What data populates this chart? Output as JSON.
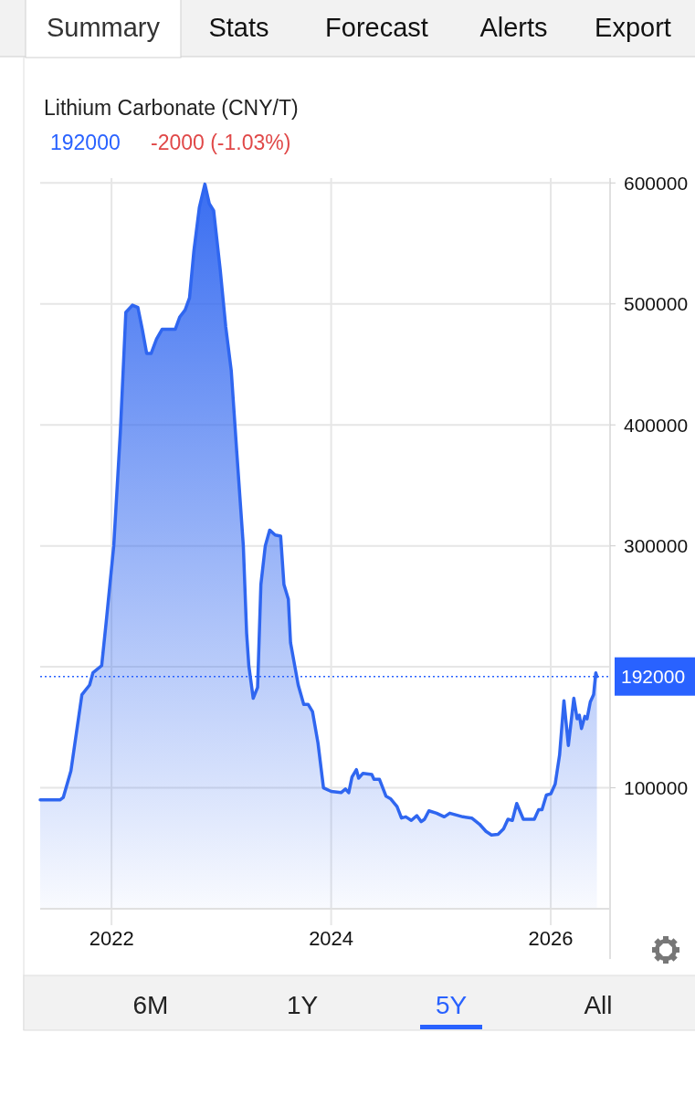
{
  "chart_data": {
    "type": "area",
    "title": "Lithium Carbonate (CNY/T)",
    "subtitle": "192000",
    "annotations": [
      "-2000 (-1.03%)",
      "Summary",
      "Stats",
      "Forecast",
      "Alerts",
      "Export",
      "6M",
      "1Y",
      "5Y",
      "All"
    ],
    "x": [
      2021.35,
      2021.53,
      2021.56,
      2021.63,
      2021.73,
      2021.8,
      2021.83,
      2021.91,
      2021.95,
      2022.02,
      2022.08,
      2022.13,
      2022.19,
      2022.24,
      2022.28,
      2022.32,
      2022.36,
      2022.41,
      2022.46,
      2022.58,
      2022.62,
      2022.67,
      2022.71,
      2022.75,
      2022.8,
      2022.85,
      2022.89,
      2022.93,
      2022.99,
      2023.04,
      2023.09,
      2023.14,
      2023.2,
      2023.23,
      2023.25,
      2023.29,
      2023.33,
      2023.36,
      2023.4,
      2023.44,
      2023.49,
      2023.54,
      2023.57,
      2023.61,
      2023.63,
      2023.66,
      2023.7,
      2023.75,
      2023.79,
      2023.83,
      2023.88,
      2023.93,
      2024.0,
      2024.09,
      2024.13,
      2024.16,
      2024.19,
      2024.23,
      2024.25,
      2024.29,
      2024.37,
      2024.39,
      2024.44,
      2024.5,
      2024.54,
      2024.6,
      2024.64,
      2024.68,
      2024.73,
      2024.78,
      2024.82,
      2024.85,
      2024.89,
      2024.96,
      2025.03,
      2025.08,
      2025.2,
      2025.28,
      2025.35,
      2025.41,
      2025.46,
      2025.52,
      2025.57,
      2025.61,
      2025.65,
      2025.69,
      2025.75,
      2025.85,
      2025.89,
      2025.92,
      2025.96,
      2026.0,
      2026.04,
      2026.08,
      2026.12,
      2026.16,
      2026.21,
      2026.24,
      2026.26,
      2026.28,
      2026.31,
      2026.33,
      2026.36,
      2026.39,
      2026.41,
      2026.42
    ],
    "series": [
      {
        "color": "#2f66f0",
        "values": [
          90000,
          90000,
          92000,
          114000,
          177000,
          185000,
          195000,
          201000,
          236000,
          300000,
          394000,
          493000,
          499000,
          497000,
          479000,
          459000,
          459000,
          471000,
          479000,
          479000,
          489000,
          495000,
          505000,
          544000,
          580000,
          599000,
          583000,
          577000,
          528000,
          481000,
          445000,
          378000,
          300000,
          228000,
          201000,
          174000,
          183000,
          268000,
          300000,
          313000,
          309000,
          308000,
          268000,
          256000,
          220000,
          205000,
          185000,
          169000,
          169000,
          163000,
          137000,
          100000,
          97000,
          96000,
          99000,
          96000,
          109000,
          115000,
          108000,
          112000,
          111000,
          107000,
          107000,
          93000,
          91000,
          84500,
          75000,
          76000,
          73000,
          77000,
          72000,
          74000,
          81000,
          79000,
          76000,
          79000,
          76000,
          75000,
          70000,
          64000,
          61000,
          61500,
          66000,
          74000,
          73000,
          87000,
          74000,
          74000,
          82000,
          82000,
          94000,
          95000,
          103000,
          127000,
          172000,
          135000,
          174000,
          157000,
          160000,
          149000,
          159000,
          157000,
          171000,
          177000,
          195000,
          192000
        ]
      }
    ],
    "xlim": [
      2021.35,
      2026.54
    ],
    "xticks": [
      2022,
      2024,
      2026
    ],
    "ylim": [
      0,
      604000
    ],
    "yticks": [
      100000,
      {
        "value": 200000,
        "label": null
      },
      300000,
      400000,
      500000,
      600000
    ],
    "ref_lines": [
      {
        "axis": "y",
        "value": 192000,
        "label": "192000",
        "color": "#2962ff",
        "line_style": "dotted"
      }
    ],
    "grid": true
  }
}
